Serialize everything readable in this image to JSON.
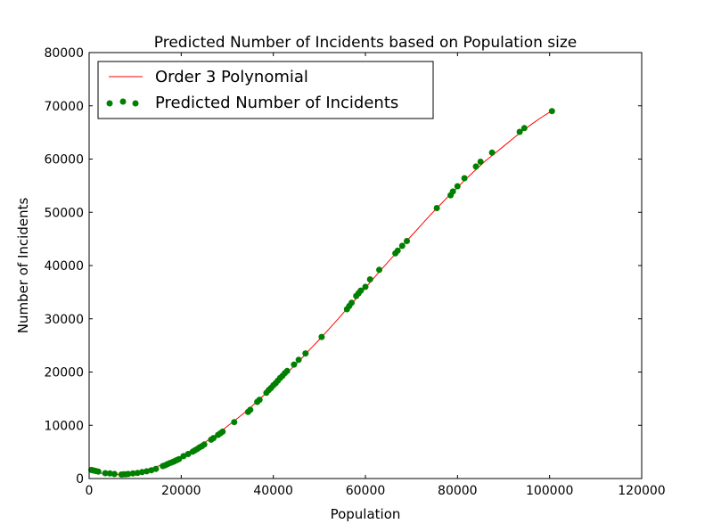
{
  "chart_data": {
    "type": "scatter",
    "title": "Predicted Number of Incidents based on Population size",
    "xlabel": "Population",
    "ylabel": "Number of Incidents",
    "xlim": [
      0,
      120000
    ],
    "ylim": [
      0,
      80000
    ],
    "xticks": [
      "0",
      "20000",
      "40000",
      "60000",
      "80000",
      "100000",
      "120000"
    ],
    "yticks": [
      "0",
      "10000",
      "20000",
      "30000",
      "40000",
      "50000",
      "60000",
      "70000",
      "80000"
    ],
    "grid": false,
    "legend_position": "top-left",
    "legend": [
      "Order 3 Polynomial",
      "Predicted Number of Incidents"
    ],
    "colors": {
      "line": "#ff0000",
      "points": "#008000"
    },
    "series": [
      {
        "name": "Order 3 Polynomial",
        "kind": "line",
        "x": [
          0,
          2000,
          4000,
          6000,
          8000,
          10000,
          12000,
          14000,
          16000,
          18000,
          20000,
          22000,
          24000,
          26000,
          28000,
          30000,
          32000,
          34000,
          36000,
          38000,
          40000,
          42000,
          44000,
          46000,
          48000,
          50000,
          52000,
          54000,
          56000,
          58000,
          60000,
          62000,
          64000,
          66000,
          68000,
          70000,
          72000,
          74000,
          76000,
          78000,
          80000,
          82000,
          84000,
          86000,
          88000,
          90000,
          92000,
          94000,
          96000,
          98000,
          100000,
          100500
        ],
        "y": [
          1500,
          1050,
          850,
          750,
          900,
          1150,
          1550,
          2050,
          2650,
          3400,
          4200,
          5200,
          6150,
          7300,
          8450,
          9800,
          11150,
          12550,
          14100,
          15700,
          17300,
          18950,
          20700,
          22450,
          24300,
          26100,
          28000,
          29900,
          31900,
          33800,
          35800,
          37800,
          39800,
          41700,
          43700,
          45600,
          47500,
          49400,
          51200,
          53000,
          54700,
          56400,
          58000,
          59600,
          61000,
          62400,
          63800,
          65200,
          66500,
          67700,
          68800,
          69000
        ]
      },
      {
        "name": "Predicted Number of Incidents",
        "kind": "scatter",
        "x": [
          500,
          1000,
          1500,
          2000,
          3500,
          4500,
          5500,
          7000,
          7500,
          8000,
          8500,
          9500,
          10500,
          11500,
          12500,
          13500,
          14500,
          16000,
          16500,
          17000,
          17500,
          18000,
          18500,
          19000,
          19500,
          20500,
          21500,
          22500,
          23000,
          23500,
          24000,
          24500,
          25000,
          26500,
          27000,
          28000,
          28500,
          29000,
          31500,
          34500,
          35000,
          36500,
          37000,
          38500,
          39000,
          39500,
          40000,
          40500,
          41000,
          41500,
          42000,
          42500,
          43000,
          44500,
          45500,
          47000,
          50500,
          56000,
          56500,
          57000,
          58000,
          58500,
          59000,
          60000,
          61000,
          63000,
          66500,
          67000,
          68000,
          69000,
          75500,
          78500,
          79000,
          80000,
          81500,
          84000,
          85000,
          87500,
          93500,
          94500,
          100500
        ],
        "y": [
          1600,
          1500,
          1400,
          1300,
          1000,
          950,
          850,
          750,
          800,
          800,
          850,
          950,
          1050,
          1200,
          1350,
          1550,
          1800,
          2350,
          2500,
          2700,
          2900,
          3050,
          3250,
          3450,
          3650,
          4200,
          4600,
          5050,
          5300,
          5550,
          5850,
          6100,
          6400,
          7300,
          7600,
          8200,
          8500,
          8800,
          10600,
          12500,
          12900,
          14400,
          14800,
          16100,
          16600,
          17000,
          17500,
          17900,
          18400,
          18900,
          19300,
          19800,
          20200,
          21400,
          22300,
          23500,
          26600,
          31800,
          32400,
          33000,
          34300,
          34800,
          35300,
          36000,
          37400,
          39200,
          42300,
          42800,
          43700,
          44600,
          50800,
          53200,
          53900,
          54900,
          56400,
          58600,
          59500,
          61200,
          65100,
          65800,
          69000
        ]
      }
    ]
  }
}
